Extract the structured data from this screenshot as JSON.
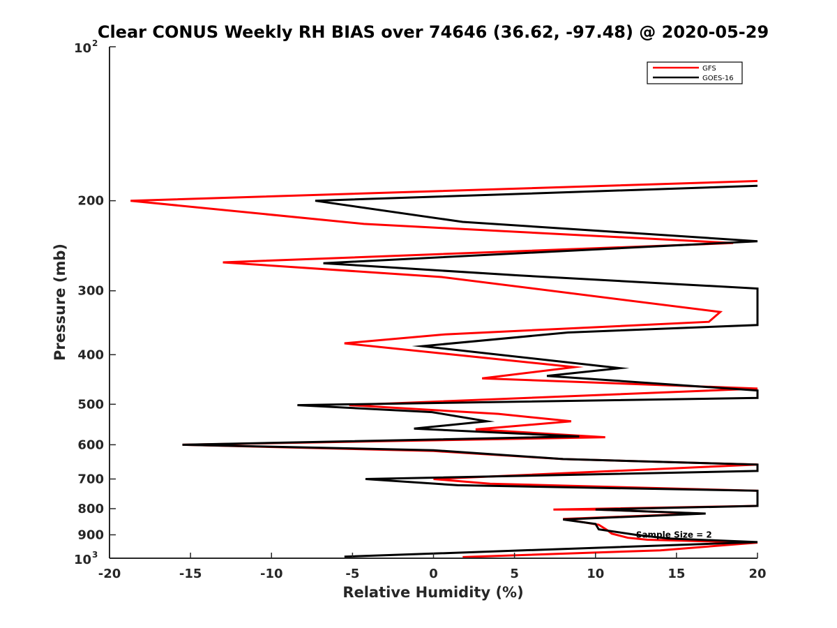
{
  "chart_data": {
    "type": "line",
    "title": "Clear CONUS Weekly RH BIAS over 74646 (36.62, -97.48) @ 2020-05-29",
    "xlabel": "Relative Humidity (%)",
    "ylabel": "Pressure (mb)",
    "xlim": [
      -20,
      20
    ],
    "ylim": [
      100,
      1000
    ],
    "y_scale": "log",
    "y_reversed": true,
    "x_ticks": [
      -20,
      -15,
      -10,
      -5,
      0,
      5,
      10,
      15,
      20
    ],
    "x_tick_labels": [
      "-20",
      "-15",
      "-10",
      "-5",
      "0",
      "5",
      "10",
      "15",
      "20"
    ],
    "y_ticks": [
      200,
      300,
      400,
      500,
      600,
      700,
      800,
      900
    ],
    "y_tick_labels": [
      "200",
      "300",
      "400",
      "500",
      "600",
      "700",
      "800",
      "900"
    ],
    "y_ends": [
      {
        "value": 100,
        "base": "10",
        "exp": "2"
      },
      {
        "value": 1000,
        "base": "10",
        "exp": "3"
      }
    ],
    "legend": {
      "placement": "top-right",
      "entries": [
        "GFS",
        "GOES-16"
      ]
    },
    "annotations": [
      {
        "text": "Sample Size = 2",
        "x": 12.5,
        "y": 900
      }
    ],
    "series": [
      {
        "name": "GFS",
        "color": "#ff0000",
        "points": [
          [
            20,
            183
          ],
          [
            -18.7,
            200
          ],
          [
            -4.3,
            222
          ],
          [
            18.5,
            242
          ],
          [
            -13,
            264
          ],
          [
            0.5,
            282
          ],
          [
            17.7,
            330
          ],
          [
            17,
            345
          ],
          [
            0.7,
            365
          ],
          [
            -5.5,
            380
          ],
          [
            8.7,
            423
          ],
          [
            3,
            445
          ],
          [
            20,
            466
          ],
          [
            -5.2,
            502
          ],
          [
            4,
            522
          ],
          [
            8.5,
            540
          ],
          [
            2.6,
            560
          ],
          [
            10.6,
            580
          ],
          [
            -15.5,
            600
          ],
          [
            0,
            617
          ],
          [
            8,
            640
          ],
          [
            20,
            656
          ],
          [
            0,
            700
          ],
          [
            3.5,
            715
          ],
          [
            20,
            738
          ],
          [
            20,
            790
          ],
          [
            7.4,
            803
          ],
          [
            10,
            803
          ],
          [
            16.5,
            818
          ],
          [
            8,
            838
          ],
          [
            10.2,
            860
          ],
          [
            10.7,
            880
          ],
          [
            11,
            895
          ],
          [
            12,
            912
          ],
          [
            13.2,
            920
          ],
          [
            16,
            925
          ],
          [
            20,
            932
          ],
          [
            14,
            965
          ],
          [
            1.8,
            995
          ]
        ]
      },
      {
        "name": "GOES-16",
        "color": "#000000",
        "points": [
          [
            20,
            187
          ],
          [
            -7.3,
            200
          ],
          [
            1.8,
            220
          ],
          [
            20,
            240
          ],
          [
            -6.8,
            265
          ],
          [
            5.3,
            280
          ],
          [
            20,
            297
          ],
          [
            20,
            350
          ],
          [
            8.3,
            362
          ],
          [
            -0.7,
            385
          ],
          [
            11.5,
            425
          ],
          [
            7,
            440
          ],
          [
            20,
            470
          ],
          [
            20,
            486
          ],
          [
            -8.4,
            502
          ],
          [
            -0.1,
            518
          ],
          [
            3.3,
            540
          ],
          [
            -1.2,
            558
          ],
          [
            9,
            578
          ],
          [
            -15.5,
            600
          ],
          [
            0,
            615
          ],
          [
            8,
            640
          ],
          [
            20,
            656
          ],
          [
            20,
            675
          ],
          [
            -4.2,
            700
          ],
          [
            1.5,
            720
          ],
          [
            20,
            738
          ],
          [
            20,
            790
          ],
          [
            10,
            803
          ],
          [
            16.8,
            818
          ],
          [
            8,
            840
          ],
          [
            10,
            857
          ],
          [
            10.2,
            878
          ],
          [
            12.5,
            900
          ],
          [
            14.5,
            915
          ],
          [
            20,
            930
          ],
          [
            -5.5,
            993
          ]
        ]
      }
    ]
  }
}
